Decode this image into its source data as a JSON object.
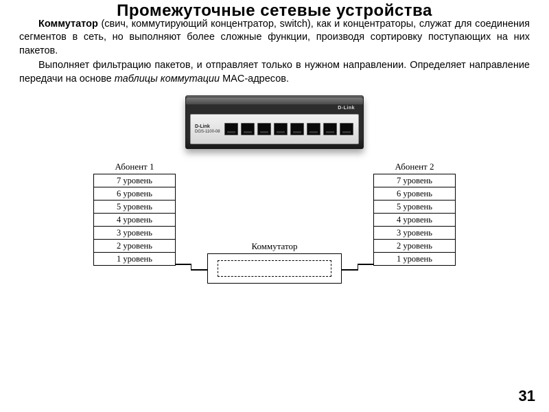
{
  "title": "Промежуточные сетевые устройства",
  "para1_lead": "Коммутатор",
  "para1_rest": " (свич, коммутирующий концентратор, switch), как и концентраторы, служат для соединения сегментов в сеть, но выполняют более сложные функции, производя сортировку поступающих на них пакетов.",
  "para2_a": "Выполняет фильтрацию пакетов, и отправляет только в нужном направлении. Определяет направление передачи на основе ",
  "para2_ital": "таблицы коммутации",
  "para2_b": " MAC-адресов.",
  "device_brand": "D-Link",
  "device_sub": "DGS-1100-08",
  "port_count": 8,
  "diagram": {
    "left_title": "Абонент 1",
    "right_title": "Абонент 2",
    "levels": [
      "7 уровень",
      "6 уровень",
      "5 уровень",
      "4 уровень",
      "3 уровень",
      "2 уровень",
      "1 уровень"
    ],
    "center_label": "Коммутатор"
  },
  "page_number": "31",
  "colors": {
    "text": "#000000",
    "bg": "#ffffff",
    "device_body": "#2c2c2c",
    "device_face": "#e3e3e3"
  }
}
